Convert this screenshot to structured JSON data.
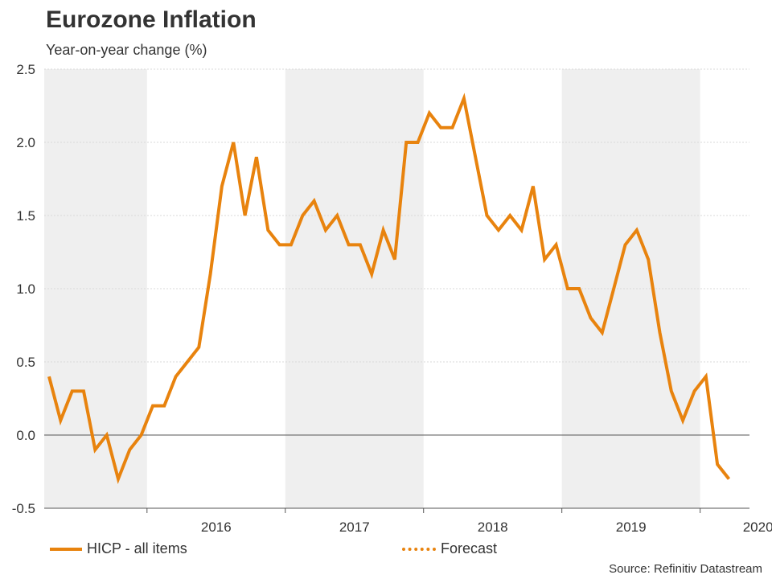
{
  "header": {
    "title": "Eurozone Inflation",
    "subtitle": "Year-on-year change (%)"
  },
  "legend": {
    "actual_label": "HICP - all items",
    "forecast_label": "Forecast"
  },
  "source": "Source: Refinitiv Datastream",
  "colors": {
    "line": "#e8830e",
    "band": "#efefef",
    "grid": "#d9d9d9",
    "axis": "#555555"
  },
  "chart_data": {
    "type": "line",
    "title": "Eurozone Inflation",
    "subtitle": "Year-on-year change (%)",
    "xlabel": "",
    "ylabel": "",
    "ylim": [
      -0.5,
      2.5
    ],
    "yticks": [
      "2.5",
      "2.0",
      "1.5",
      "1.0",
      "0.5",
      "0.0",
      "-0.5"
    ],
    "x_year_labels": [
      "2016",
      "2017",
      "2018",
      "2019",
      "2020"
    ],
    "x_start": "2015-04",
    "grid": true,
    "legend_position": "bottom",
    "series": [
      {
        "name": "HICP - all items",
        "style": "solid",
        "values": [
          0.4,
          0.1,
          0.3,
          0.3,
          -0.1,
          0.0,
          -0.3,
          -0.1,
          0.0,
          0.2,
          0.2,
          0.4,
          0.5,
          0.6,
          1.1,
          1.7,
          2.0,
          1.5,
          1.9,
          1.4,
          1.3,
          1.3,
          1.5,
          1.6,
          1.4,
          1.5,
          1.3,
          1.3,
          1.1,
          1.4,
          1.2,
          2.0,
          2.0,
          2.2,
          2.1,
          2.1,
          2.3,
          1.9,
          1.5,
          1.4,
          1.5,
          1.4,
          1.7,
          1.2,
          1.3,
          1.0,
          1.0,
          0.8,
          0.7,
          1.0,
          1.3,
          1.4,
          1.2,
          0.7,
          0.3,
          0.1,
          0.3,
          0.4,
          -0.2,
          -0.3
        ]
      },
      {
        "name": "Forecast",
        "style": "dotted",
        "values": []
      }
    ]
  }
}
